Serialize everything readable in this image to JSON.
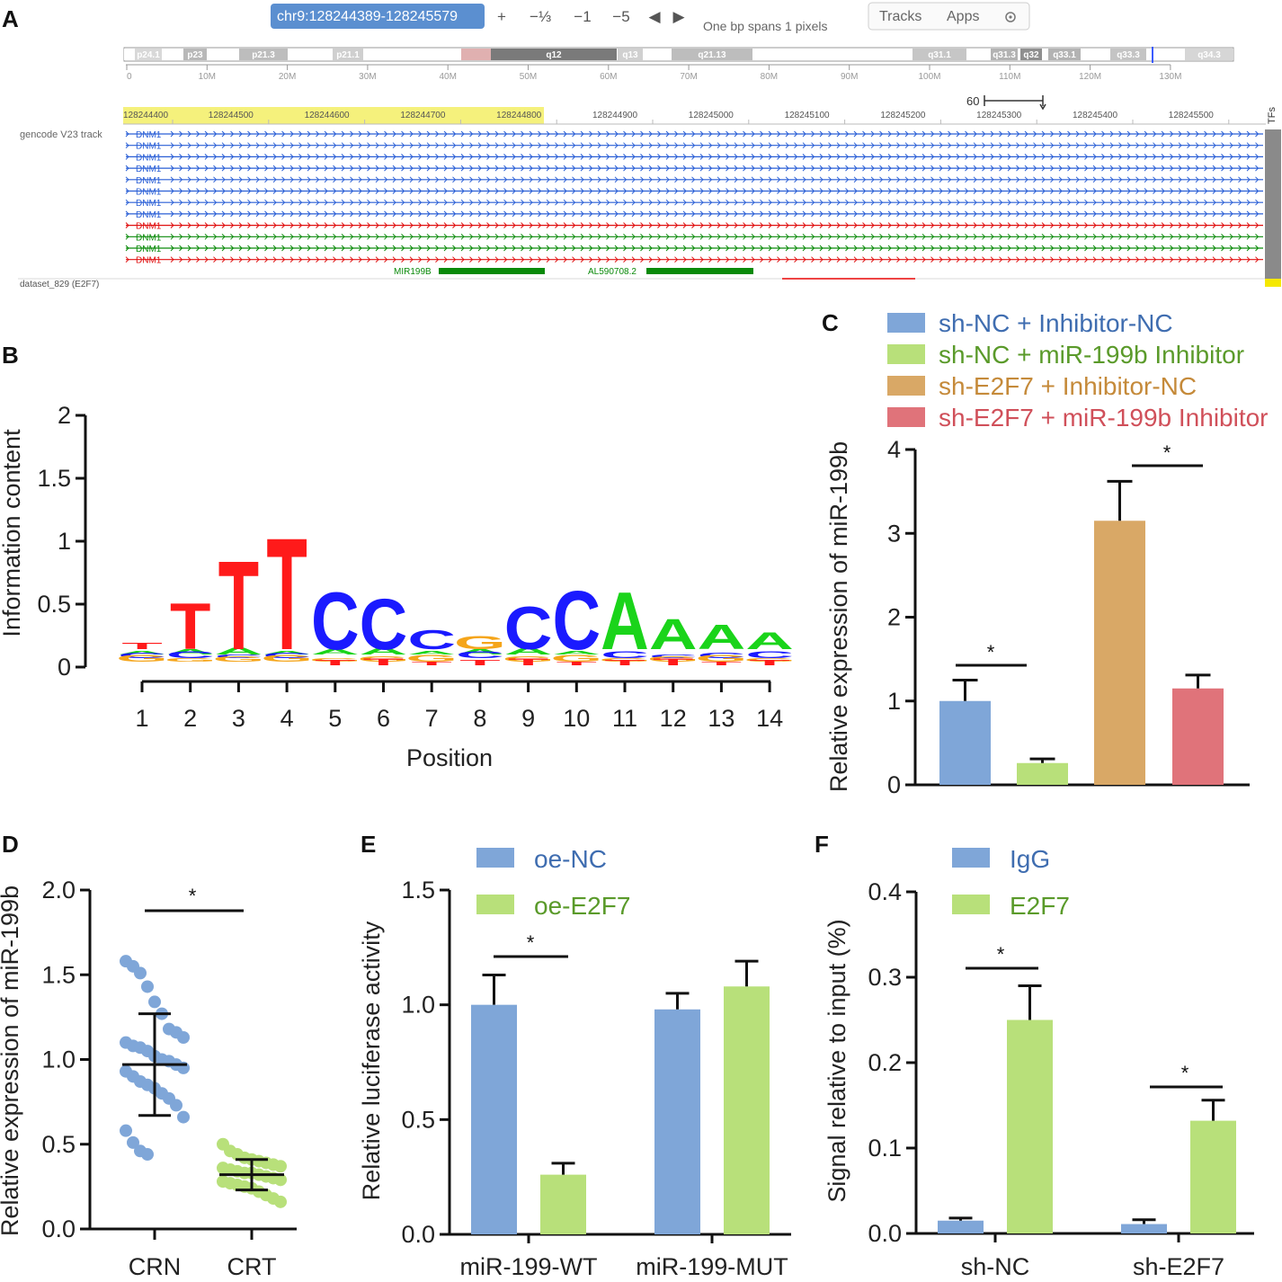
{
  "panels": {
    "A": "A",
    "B": "B",
    "C": "C",
    "D": "D",
    "E": "E",
    "F": "F"
  },
  "colors": {
    "blue": "#7fa6d8",
    "green": "#b8e07a",
    "orange": "#d9a866",
    "red": "#e0737a",
    "blue_text": "#3f6db0",
    "green_text": "#5a9a2a",
    "orange_text": "#c58a3a",
    "red_text": "#d0505a",
    "trackBlue": "#2a5fd6",
    "trackGreen": "#0a8a0a",
    "trackRed": "#e01010"
  },
  "browser": {
    "locus": "chr9:128244389-128245579",
    "buttons": [
      "+",
      "−⅓",
      "−1",
      "−5",
      "◀",
      "▶"
    ],
    "scale_note": "One bp spans 1 pixels",
    "tracks_label": "Tracks",
    "apps_label": "Apps",
    "settings_icon": "gear-icon",
    "bands": [
      "p24.1",
      "p23",
      "p21.3",
      "p21.1",
      "q12",
      "q13",
      "q21.13",
      "q31.1",
      "q31.3",
      "q32",
      "q33.1",
      "q33.3",
      "q34.3"
    ],
    "mb_ticks": [
      "0",
      "10M",
      "20M",
      "30M",
      "40M",
      "50M",
      "60M",
      "70M",
      "80M",
      "90M",
      "100M",
      "110M",
      "120M",
      "130M"
    ],
    "ruler_label": "60",
    "coord_ticks": [
      "128244400",
      "128244500",
      "128244600",
      "128244700",
      "128244800",
      "128244900",
      "128245000",
      "128245100",
      "128245200",
      "128245300",
      "128245400",
      "128245500"
    ],
    "gencode_label": "gencode V23 track",
    "gene_rows": [
      {
        "name": "DNM1",
        "color": "blue"
      },
      {
        "name": "DNM1",
        "color": "blue"
      },
      {
        "name": "DNM1",
        "color": "blue"
      },
      {
        "name": "DNM1",
        "color": "blue"
      },
      {
        "name": "DNM1",
        "color": "blue"
      },
      {
        "name": "DNM1",
        "color": "blue"
      },
      {
        "name": "DNM1",
        "color": "blue"
      },
      {
        "name": "DNM1",
        "color": "blue"
      },
      {
        "name": "DNM1",
        "color": "red"
      },
      {
        "name": "DNM1",
        "color": "green"
      },
      {
        "name": "DNM1",
        "color": "green"
      },
      {
        "name": "DNM1",
        "color": "red"
      }
    ],
    "mir_label": "MIR199B",
    "al_label": "AL590708.2",
    "dataset_label": "dataset_829 (E2F7)",
    "tfs_label": "TFs"
  },
  "chart_data": [
    {
      "panel": "B",
      "type": "sequence-logo",
      "ylabel": "Information content",
      "xlabel": "Position",
      "yticks": [
        "0",
        "0.5",
        "1",
        "1.5",
        "2"
      ],
      "ylim": [
        0,
        2
      ],
      "positions": [
        "1",
        "2",
        "3",
        "4",
        "5",
        "6",
        "7",
        "8",
        "9",
        "10",
        "11",
        "12",
        "13",
        "14"
      ],
      "top_letters": [
        {
          "pos": 1,
          "letter": "T",
          "height": 0.05
        },
        {
          "pos": 2,
          "letter": "T",
          "height": 0.38
        },
        {
          "pos": 3,
          "letter": "T",
          "height": 0.73
        },
        {
          "pos": 4,
          "letter": "T",
          "height": 0.92
        },
        {
          "pos": 5,
          "letter": "C",
          "height": 0.47
        },
        {
          "pos": 6,
          "letter": "C",
          "height": 0.42
        },
        {
          "pos": 7,
          "letter": "C",
          "height": 0.16
        },
        {
          "pos": 8,
          "letter": "G",
          "height": 0.11
        },
        {
          "pos": 9,
          "letter": "C",
          "height": 0.35
        },
        {
          "pos": 10,
          "letter": "C",
          "height": 0.48
        },
        {
          "pos": 11,
          "letter": "A",
          "height": 0.47
        },
        {
          "pos": 12,
          "letter": "A",
          "height": 0.25
        },
        {
          "pos": 13,
          "letter": "A",
          "height": 0.2
        },
        {
          "pos": 14,
          "letter": "A",
          "height": 0.14
        }
      ]
    },
    {
      "panel": "C",
      "type": "bar",
      "ylabel": "Relative expression of miR-199b",
      "ylim": [
        0,
        4
      ],
      "yticks": [
        "0",
        "1",
        "2",
        "3",
        "4"
      ],
      "series": [
        {
          "name": "sh-NC + Inhibitor-NC",
          "value": 1.0,
          "error": 0.25,
          "color": "blue"
        },
        {
          "name": "sh-NC + miR-199b Inhibitor",
          "value": 0.26,
          "error": 0.05,
          "color": "green"
        },
        {
          "name": "sh-E2F7 + Inhibitor-NC",
          "value": 3.15,
          "error": 0.47,
          "color": "orange"
        },
        {
          "name": "sh-E2F7 + miR-199b Inhibitor",
          "value": 1.15,
          "error": 0.16,
          "color": "red"
        }
      ],
      "significance": [
        "*",
        "*"
      ]
    },
    {
      "panel": "D",
      "type": "scatter",
      "ylabel": "Relative expression of miR-199b",
      "ylim": [
        0,
        2
      ],
      "yticks": [
        "0.0",
        "0.5",
        "1.0",
        "1.5",
        "2.0"
      ],
      "categories": [
        "CRN",
        "CRT"
      ],
      "groups": [
        {
          "name": "CRN",
          "mean": 0.97,
          "sd": 0.3,
          "color": "blue",
          "values": [
            1.58,
            1.55,
            1.51,
            1.43,
            1.34,
            1.27,
            1.18,
            1.16,
            1.13,
            1.1,
            1.08,
            1.07,
            1.05,
            1.02,
            1.0,
            0.99,
            0.97,
            0.95,
            0.93,
            0.9,
            0.87,
            0.85,
            0.83,
            0.8,
            0.77,
            0.73,
            0.66,
            0.58,
            0.51,
            0.46,
            0.44
          ]
        },
        {
          "name": "CRT",
          "mean": 0.32,
          "sd": 0.09,
          "color": "green",
          "values": [
            0.5,
            0.46,
            0.44,
            0.42,
            0.41,
            0.4,
            0.39,
            0.38,
            0.37,
            0.36,
            0.35,
            0.34,
            0.33,
            0.33,
            0.32,
            0.31,
            0.3,
            0.29,
            0.28,
            0.27,
            0.26,
            0.25,
            0.24,
            0.22,
            0.2,
            0.18,
            0.16
          ]
        }
      ],
      "significance": "*"
    },
    {
      "panel": "E",
      "type": "bar",
      "ylabel": "Relative luciferase activity",
      "ylim": [
        0,
        1.5
      ],
      "yticks": [
        "0.0",
        "0.5",
        "1.0",
        "1.5"
      ],
      "categories": [
        "miR-199-WT",
        "miR-199-MUT"
      ],
      "series": [
        {
          "name": "oe-NC",
          "values": [
            1.0,
            0.98
          ],
          "errors": [
            0.13,
            0.07
          ],
          "color": "blue"
        },
        {
          "name": "oe-E2F7",
          "values": [
            0.26,
            1.08
          ],
          "errors": [
            0.05,
            0.11
          ],
          "color": "green"
        }
      ],
      "significance": "*"
    },
    {
      "panel": "F",
      "type": "bar",
      "ylabel": "Signal relative to input (%)",
      "ylim": [
        0,
        0.4
      ],
      "yticks": [
        "0.0",
        "0.1",
        "0.2",
        "0.3",
        "0.4"
      ],
      "categories": [
        "sh-NC",
        "sh-E2F7"
      ],
      "series": [
        {
          "name": "IgG",
          "values": [
            0.015,
            0.011
          ],
          "errors": [
            0.003,
            0.005
          ],
          "color": "blue"
        },
        {
          "name": "E2F7",
          "values": [
            0.25,
            0.132
          ],
          "errors": [
            0.04,
            0.024
          ],
          "color": "green"
        }
      ],
      "significance": [
        "*",
        "*"
      ]
    }
  ]
}
